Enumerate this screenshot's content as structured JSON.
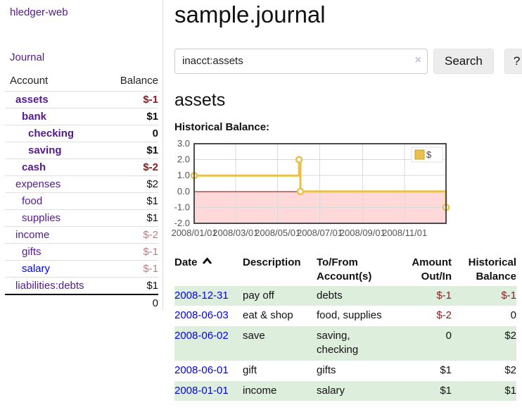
{
  "app": {
    "brand": "hledger-web"
  },
  "sidebar": {
    "journal_label": "Journal",
    "accounts": {
      "headers": {
        "account": "Account",
        "balance": "Balance"
      },
      "rows": [
        {
          "name": "assets",
          "balance": "$-1"
        },
        {
          "name": "bank",
          "balance": "$1"
        },
        {
          "name": "checking",
          "balance": "0"
        },
        {
          "name": "saving",
          "balance": "$1"
        },
        {
          "name": "cash",
          "balance": "$-2"
        },
        {
          "name": "expenses",
          "balance": "$2"
        },
        {
          "name": "food",
          "balance": "$1"
        },
        {
          "name": "supplies",
          "balance": "$1"
        },
        {
          "name": "income",
          "balance": "$-2"
        },
        {
          "name": "gifts",
          "balance": "$-1"
        },
        {
          "name": "salary",
          "balance": "$-1"
        },
        {
          "name": "liabilities:debts",
          "balance": "$1"
        }
      ],
      "total": "0"
    }
  },
  "main": {
    "title": "sample.journal",
    "search": {
      "value": "inacct:assets",
      "clear_icon": "×",
      "button_label": "Search",
      "help_label": "?"
    },
    "account_heading": "assets",
    "register": {
      "headers": {
        "date": "Date",
        "description": "Description",
        "tofrom_line1": "To/From",
        "tofrom_line2": "Account(s)",
        "amount_line1": "Amount",
        "amount_line2": "Out/In",
        "balance_line1": "Historical",
        "balance_line2": "Balance"
      },
      "rows": [
        {
          "date": "2008-12-31",
          "description": "pay off",
          "accounts": "debts",
          "amount": "$-1",
          "balance": "$-1"
        },
        {
          "date": "2008-06-03",
          "description": "eat & shop",
          "accounts": "food, supplies",
          "amount": "$-2",
          "balance": "0"
        },
        {
          "date": "2008-06-02",
          "description": "save",
          "accounts": "saving,\nchecking",
          "amount": "0",
          "balance": "$2"
        },
        {
          "date": "2008-06-01",
          "description": "gift",
          "accounts": "gifts",
          "amount": "$1",
          "balance": "$2"
        },
        {
          "date": "2008-01-01",
          "description": "income",
          "accounts": "salary",
          "amount": "$1",
          "balance": "$1"
        }
      ]
    }
  },
  "chart_data": {
    "type": "line",
    "title": "Historical Balance:",
    "step": true,
    "x_start": "2008-01-01",
    "x_end": "2008-12-31",
    "x_ticks": [
      "2008/01/01",
      "2008/03/01",
      "2008/05/01",
      "2008/07/01",
      "2008/09/01",
      "2008/11/01"
    ],
    "y_ticks": [
      3.0,
      2.0,
      1.0,
      0.0,
      -1.0,
      -2.0
    ],
    "ylim": [
      -2,
      3
    ],
    "grid": true,
    "legend": {
      "label": "$",
      "position": "top-right"
    },
    "series": [
      {
        "name": "$",
        "color": "#E9C14A",
        "points": [
          [
            "2008-01-01",
            1
          ],
          [
            "2008-06-01",
            2
          ],
          [
            "2008-06-03",
            0
          ],
          [
            "2008-12-31",
            -1
          ]
        ]
      }
    ],
    "colors": {
      "line": "#E9C14A",
      "marker_fill": "#ffffff",
      "negative_region": "#ffd9d9",
      "zero_line": "#8b0000",
      "grid": "#d9d9d9",
      "plot_border": "#4c4c4c"
    }
  }
}
